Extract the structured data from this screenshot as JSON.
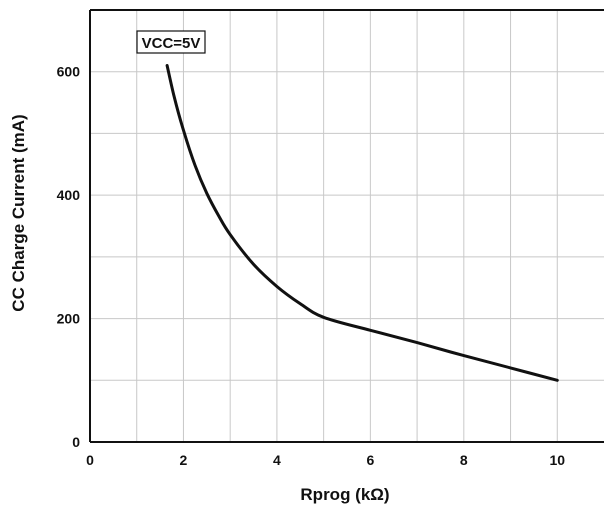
{
  "chart_data": {
    "type": "line",
    "title": "",
    "xlabel": "Rprog (kΩ)",
    "ylabel": "CC Charge Current (mA)",
    "xlim": [
      0,
      11
    ],
    "ylim": [
      0,
      700
    ],
    "x_ticks": [
      0,
      2,
      4,
      6,
      8,
      10
    ],
    "y_ticks": [
      0,
      200,
      400,
      600
    ],
    "grid": true,
    "annotation": "VCC=5V",
    "series": [
      {
        "x": [
          1.65,
          1.8,
          2.0,
          2.25,
          2.5,
          2.75,
          3.0,
          3.5,
          4.0,
          4.5,
          5.0,
          6.0,
          7.0,
          8.0,
          9.0,
          10.0
        ],
        "y": [
          610,
          560,
          505,
          448,
          403,
          367,
          336,
          288,
          252,
          224,
          202,
          181,
          161,
          140,
          120,
          100
        ]
      }
    ]
  },
  "colors": {
    "line": "#111111",
    "grid": "#c8c8c8",
    "axis": "#111111",
    "background": "#ffffff"
  }
}
